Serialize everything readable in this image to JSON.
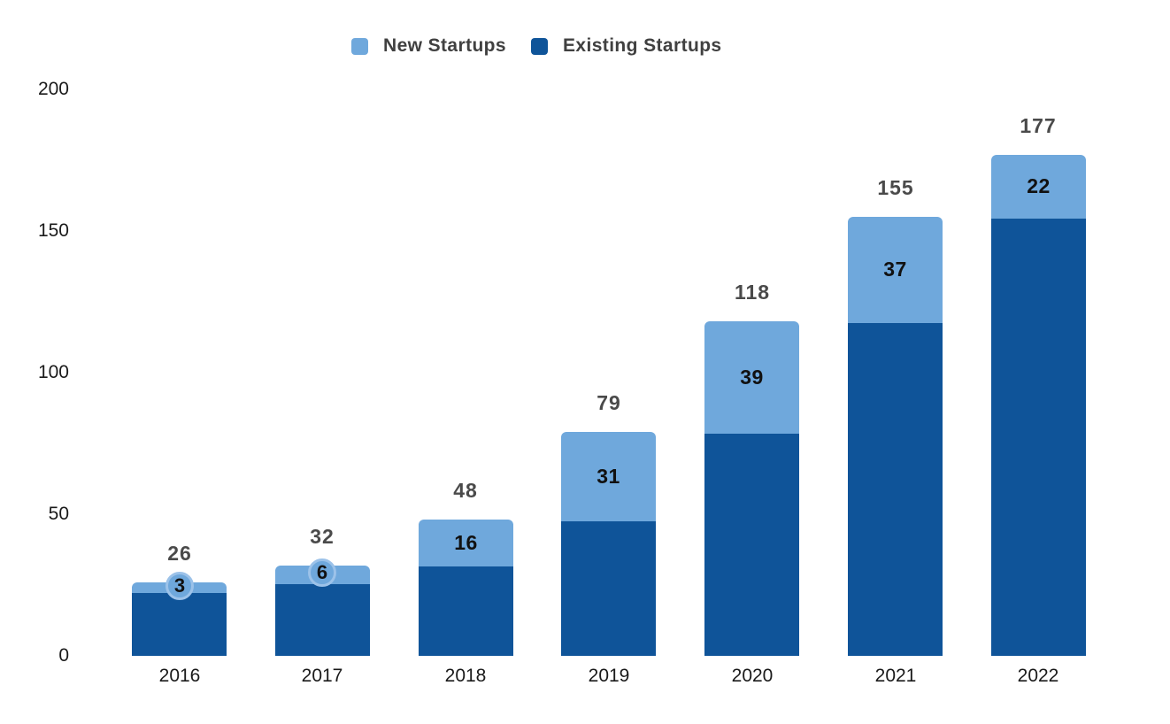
{
  "legend": {
    "items": [
      {
        "label": "New Startups",
        "color": "#6FA8DC"
      },
      {
        "label": "Existing Startups",
        "color": "#0F5499"
      }
    ]
  },
  "chart_data": {
    "type": "bar",
    "stacked": true,
    "title": "",
    "xlabel": "",
    "ylabel": "",
    "categories": [
      "2016",
      "2017",
      "2018",
      "2019",
      "2020",
      "2021",
      "2022"
    ],
    "series": [
      {
        "name": "Existing Startups",
        "color": "#0F5499",
        "values": [
          23,
          26,
          32,
          48,
          79,
          118,
          155
        ]
      },
      {
        "name": "New Startups",
        "color": "#6FA8DC",
        "values": [
          3,
          6,
          16,
          31,
          39,
          37,
          22
        ]
      }
    ],
    "totals": [
      26,
      32,
      48,
      79,
      118,
      155,
      177
    ],
    "yticks": [
      0,
      50,
      100,
      150,
      200
    ],
    "ylim": [
      0,
      200
    ],
    "grid": false,
    "legend_position": "top"
  },
  "colors": {
    "background": "#FFFFFF",
    "new_segment": "#6FA8DC",
    "existing_segment": "#0F5499",
    "bubble_ring": "#9CC2E9",
    "total_label": "#4A4A4A",
    "segment_label": "#111111",
    "axis_label": "#1A1A1A",
    "legend_text": "#404040"
  }
}
